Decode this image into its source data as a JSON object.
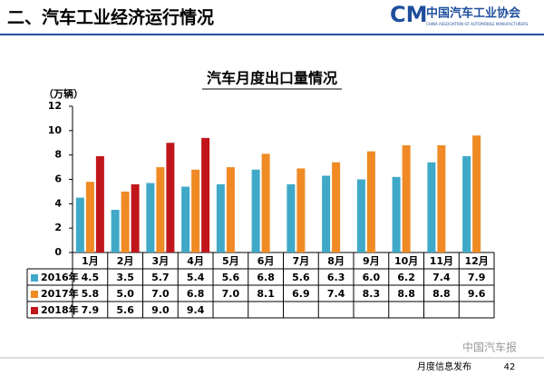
{
  "header": {
    "title": "二、汽车工业经济运行情况",
    "logo": "中国汽车工业协会",
    "logo_en": "CHINA ASSOCIATION OF AUTOMOBILE MANUFACTURERS"
  },
  "chart_data": {
    "type": "bar",
    "title": "汽车月度出口量情况",
    "y_label": "（万辆）",
    "categories": [
      "1月",
      "2月",
      "3月",
      "4月",
      "5月",
      "6月",
      "7月",
      "8月",
      "9月",
      "10月",
      "11月",
      "12月"
    ],
    "series": [
      {
        "name": "2016年",
        "color": "#3fa9c7",
        "values": [
          4.5,
          3.5,
          5.7,
          5.4,
          5.6,
          6.8,
          5.6,
          6.3,
          6.0,
          6.2,
          7.4,
          7.9
        ],
        "value_labels": [
          "4.5",
          "3.5",
          "5.7",
          "5.4",
          "5.6",
          "6.8",
          "5.6",
          "6.3",
          "6.0",
          "6.2",
          "7.4",
          "7.9"
        ]
      },
      {
        "name": "2017年",
        "color": "#f08a24",
        "values": [
          5.8,
          5.0,
          7.0,
          6.8,
          7.0,
          8.1,
          6.9,
          7.4,
          8.3,
          8.8,
          8.8,
          9.6
        ],
        "value_labels": [
          "5.8",
          "5.0",
          "7.0",
          "6.8",
          "7.0",
          "8.1",
          "6.9",
          "7.4",
          "8.3",
          "8.8",
          "8.8",
          "9.6"
        ]
      },
      {
        "name": "2018年",
        "color": "#c0161b",
        "values": [
          7.9,
          5.6,
          9.0,
          9.4,
          null,
          null,
          null,
          null,
          null,
          null,
          null,
          null
        ],
        "value_labels": [
          "7.9",
          "5.6",
          "9.0",
          "9.4",
          null,
          null,
          null,
          null,
          null,
          null,
          null,
          null
        ]
      }
    ],
    "ylim": [
      0,
      12
    ],
    "yticks": [
      0,
      2,
      4,
      6,
      8,
      10,
      12
    ],
    "grid": false
  },
  "footer": {
    "watermark": "中国汽车报",
    "text": "月度信息发布",
    "page": "42"
  }
}
